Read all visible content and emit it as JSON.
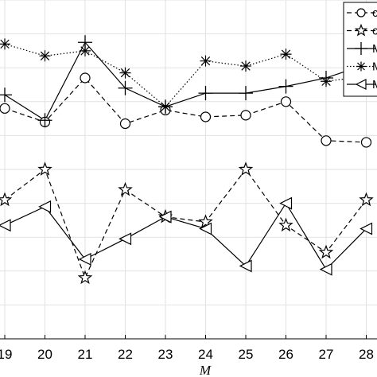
{
  "chart_data": {
    "type": "line",
    "xlabel": "M",
    "ylabel": "",
    "title": "",
    "x": [
      19,
      20,
      21,
      22,
      23,
      24,
      25,
      26,
      27,
      28
    ],
    "xlim": [
      19,
      28.5
    ],
    "ylim": [
      0,
      10
    ],
    "grid": true,
    "legend_position": "top-right",
    "series": [
      {
        "name": "c",
        "marker": "circle",
        "dash": "dashed",
        "values": [
          6.8,
          6.4,
          7.7,
          6.35,
          6.75,
          6.55,
          6.6,
          7.0,
          5.85,
          5.8
        ]
      },
      {
        "name": "c",
        "marker": "star",
        "dash": "dashed",
        "values": [
          4.1,
          5.0,
          1.8,
          4.4,
          3.6,
          3.45,
          5.0,
          3.35,
          2.55,
          4.1
        ]
      },
      {
        "name": "M",
        "marker": "plus",
        "dash": "solid",
        "values": [
          7.2,
          6.45,
          8.75,
          7.4,
          6.85,
          7.25,
          7.25,
          7.45,
          7.7,
          8.1
        ]
      },
      {
        "name": "M",
        "marker": "asterisk",
        "dash": "dotted",
        "values": [
          8.7,
          8.35,
          8.5,
          7.85,
          6.85,
          8.2,
          8.05,
          8.4,
          7.6,
          7.75
        ]
      },
      {
        "name": "M",
        "marker": "triangle-left",
        "dash": "solid",
        "values": [
          3.35,
          3.9,
          2.35,
          2.95,
          3.6,
          3.25,
          2.15,
          4.0,
          2.05,
          3.25
        ]
      }
    ]
  }
}
